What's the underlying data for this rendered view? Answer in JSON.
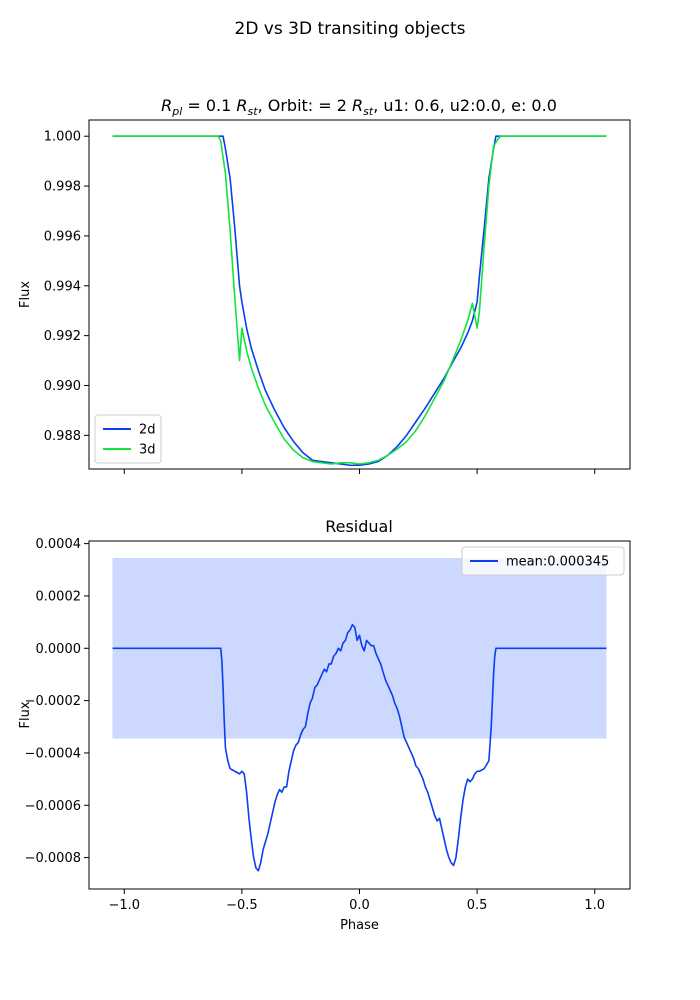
{
  "figure": {
    "suptitle": "2D vs 3D transiting objects"
  },
  "colors": {
    "series_2d": "#0b3ef0",
    "series_3d": "#12e33f",
    "band": "#cdd8ff",
    "axes": "#000000"
  },
  "chart_data": [
    {
      "type": "line",
      "title_parts": [
        "R",
        "pl",
        " = 0.1 ",
        "R",
        "st",
        ", Orbit: = 2 ",
        "R",
        "st",
        ", u1: 0.6, u2:0.0, e: 0.0"
      ],
      "xlabel": "",
      "ylabel": "Flux",
      "xlim": [
        -1.15,
        1.15
      ],
      "ylim": [
        0.98665,
        1.00065
      ],
      "xticks": [
        -1.0,
        -0.5,
        0.0,
        0.5,
        1.0
      ],
      "xtick_labels_visible": false,
      "yticks": [
        0.988,
        0.99,
        0.992,
        0.994,
        0.996,
        0.998,
        1.0
      ],
      "ytick_labels": [
        "0.988",
        "0.990",
        "0.992",
        "0.994",
        "0.996",
        "0.998",
        "1.000"
      ],
      "legend_position": "lower-left",
      "grid": false,
      "series": [
        {
          "name": "2d",
          "x": [
            -1.05,
            -0.6,
            -0.58,
            -0.57,
            -0.55,
            -0.53,
            -0.51,
            -0.5,
            -0.48,
            -0.46,
            -0.43,
            -0.4,
            -0.36,
            -0.32,
            -0.28,
            -0.24,
            -0.2,
            -0.16,
            -0.12,
            -0.08,
            -0.04,
            0.0,
            0.04,
            0.08,
            0.12,
            0.16,
            0.2,
            0.24,
            0.28,
            0.32,
            0.36,
            0.4,
            0.43,
            0.46,
            0.48,
            0.5,
            0.51,
            0.53,
            0.55,
            0.57,
            0.58,
            0.6,
            1.05
          ],
          "y": [
            1.0,
            1.0,
            1.0,
            0.9995,
            0.9983,
            0.9963,
            0.994,
            0.99335,
            0.9923,
            0.9915,
            0.9906,
            0.9898,
            0.989,
            0.9883,
            0.98775,
            0.9873,
            0.987,
            0.98695,
            0.9869,
            0.98685,
            0.9868,
            0.9868,
            0.98685,
            0.98695,
            0.9872,
            0.98755,
            0.988,
            0.98855,
            0.9891,
            0.9897,
            0.9903,
            0.991,
            0.9915,
            0.9921,
            0.9926,
            0.99335,
            0.9944,
            0.9963,
            0.9983,
            0.9995,
            1.0,
            1.0,
            1.0
          ]
        },
        {
          "name": "3d",
          "x": [
            -1.05,
            -0.6,
            -0.59,
            -0.57,
            -0.55,
            -0.53,
            -0.51,
            -0.5,
            -0.48,
            -0.46,
            -0.43,
            -0.4,
            -0.36,
            -0.32,
            -0.28,
            -0.24,
            -0.2,
            -0.16,
            -0.12,
            -0.08,
            -0.04,
            0.0,
            0.04,
            0.08,
            0.12,
            0.16,
            0.2,
            0.24,
            0.28,
            0.32,
            0.36,
            0.4,
            0.43,
            0.46,
            0.48,
            0.5,
            0.51,
            0.53,
            0.55,
            0.57,
            0.59,
            0.6,
            1.05
          ],
          "y": [
            1.0,
            1.0,
            0.9998,
            0.9985,
            0.9962,
            0.9935,
            0.991,
            0.9923,
            0.9914,
            0.9907,
            0.9899,
            0.9892,
            0.9885,
            0.98785,
            0.9874,
            0.9871,
            0.98695,
            0.9869,
            0.98685,
            0.9869,
            0.9869,
            0.98685,
            0.9869,
            0.987,
            0.9872,
            0.98745,
            0.98775,
            0.9882,
            0.9888,
            0.9895,
            0.9902,
            0.9911,
            0.9918,
            0.9926,
            0.9933,
            0.9923,
            0.993,
            0.9956,
            0.998,
            0.9996,
            0.9999,
            1.0,
            1.0
          ]
        }
      ]
    },
    {
      "type": "line",
      "title": "Residual",
      "xlabel": "Phase",
      "ylabel": "Flux",
      "xlim": [
        -1.15,
        1.15
      ],
      "ylim": [
        -0.00092,
        0.00041
      ],
      "xticks": [
        -1.0,
        -0.5,
        0.0,
        0.5,
        1.0
      ],
      "xtick_labels": [
        "−1.0",
        "−0.5",
        "0.0",
        "0.5",
        "1.0"
      ],
      "yticks": [
        -0.0008,
        -0.0006,
        -0.0004,
        -0.0002,
        0.0,
        0.0002,
        0.0004
      ],
      "ytick_labels": [
        "−0.0008",
        "−0.0006",
        "−0.0004",
        "−0.0002",
        "0.0000",
        "0.0002",
        "0.0004"
      ],
      "legend_position": "upper-right",
      "grid": false,
      "band": {
        "x": [
          -1.05,
          1.05
        ],
        "y": [
          -0.000345,
          0.000345
        ]
      },
      "series": [
        {
          "name": "mean:0.000345",
          "x": [
            -1.05,
            -0.59,
            -0.585,
            -0.58,
            -0.575,
            -0.57,
            -0.56,
            -0.55,
            -0.53,
            -0.51,
            -0.5,
            -0.49,
            -0.48,
            -0.47,
            -0.46,
            -0.45,
            -0.44,
            -0.43,
            -0.42,
            -0.41,
            -0.4,
            -0.39,
            -0.38,
            -0.37,
            -0.36,
            -0.35,
            -0.34,
            -0.33,
            -0.32,
            -0.31,
            -0.3,
            -0.29,
            -0.28,
            -0.27,
            -0.26,
            -0.25,
            -0.24,
            -0.23,
            -0.22,
            -0.21,
            -0.2,
            -0.19,
            -0.18,
            -0.17,
            -0.16,
            -0.15,
            -0.14,
            -0.13,
            -0.12,
            -0.11,
            -0.1,
            -0.09,
            -0.08,
            -0.07,
            -0.06,
            -0.05,
            -0.04,
            -0.03,
            -0.02,
            -0.01,
            0.0,
            0.01,
            0.02,
            0.03,
            0.04,
            0.05,
            0.06,
            0.07,
            0.08,
            0.09,
            0.1,
            0.11,
            0.12,
            0.13,
            0.14,
            0.15,
            0.16,
            0.17,
            0.18,
            0.19,
            0.2,
            0.21,
            0.22,
            0.23,
            0.24,
            0.25,
            0.26,
            0.27,
            0.28,
            0.29,
            0.3,
            0.31,
            0.32,
            0.33,
            0.34,
            0.35,
            0.36,
            0.37,
            0.38,
            0.39,
            0.4,
            0.41,
            0.42,
            0.43,
            0.44,
            0.45,
            0.46,
            0.47,
            0.48,
            0.49,
            0.5,
            0.51,
            0.53,
            0.55,
            0.56,
            0.565,
            0.57,
            0.575,
            0.58,
            0.59,
            1.05
          ],
          "y": [
            0.0,
            0.0,
            -5e-05,
            -0.00015,
            -0.00028,
            -0.00038,
            -0.00043,
            -0.00046,
            -0.00047,
            -0.00048,
            -0.00047,
            -0.00048,
            -0.00055,
            -0.00065,
            -0.00073,
            -0.0008,
            -0.00084,
            -0.00085,
            -0.00082,
            -0.00077,
            -0.00074,
            -0.00071,
            -0.00067,
            -0.00063,
            -0.00059,
            -0.00056,
            -0.00054,
            -0.00055,
            -0.00053,
            -0.00053,
            -0.00047,
            -0.00043,
            -0.00039,
            -0.00037,
            -0.00036,
            -0.00033,
            -0.00031,
            -0.0003,
            -0.00025,
            -0.00021,
            -0.00019,
            -0.00015,
            -0.00014,
            -0.00012,
            -0.0001,
            -8e-05,
            -9e-05,
            -6e-05,
            -6e-05,
            -3e-05,
            -2e-05,
            0.0,
            -1e-05,
            2e-05,
            3e-05,
            6e-05,
            7e-05,
            9e-05,
            8e-05,
            3e-05,
            5e-05,
            1e-05,
            -1e-05,
            3e-05,
            2e-05,
            1e-05,
            1e-05,
            -2e-05,
            -4e-05,
            -6e-05,
            -9e-05,
            -0.00012,
            -0.00014,
            -0.00016,
            -0.00018,
            -0.00021,
            -0.00023,
            -0.00026,
            -0.0003,
            -0.00034,
            -0.00036,
            -0.00038,
            -0.0004,
            -0.00042,
            -0.00045,
            -0.00046,
            -0.00048,
            -0.0005,
            -0.00053,
            -0.00055,
            -0.00058,
            -0.00061,
            -0.00064,
            -0.00066,
            -0.00065,
            -0.00069,
            -0.00073,
            -0.00077,
            -0.0008,
            -0.00082,
            -0.00083,
            -0.0008,
            -0.00073,
            -0.00065,
            -0.00058,
            -0.00053,
            -0.0005,
            -0.00051,
            -0.0005,
            -0.00048,
            -0.00047,
            -0.00047,
            -0.00046,
            -0.00043,
            -0.0003,
            -0.0002,
            -0.0001,
            -3e-05,
            0.0,
            0.0,
            0.0
          ]
        }
      ]
    }
  ]
}
